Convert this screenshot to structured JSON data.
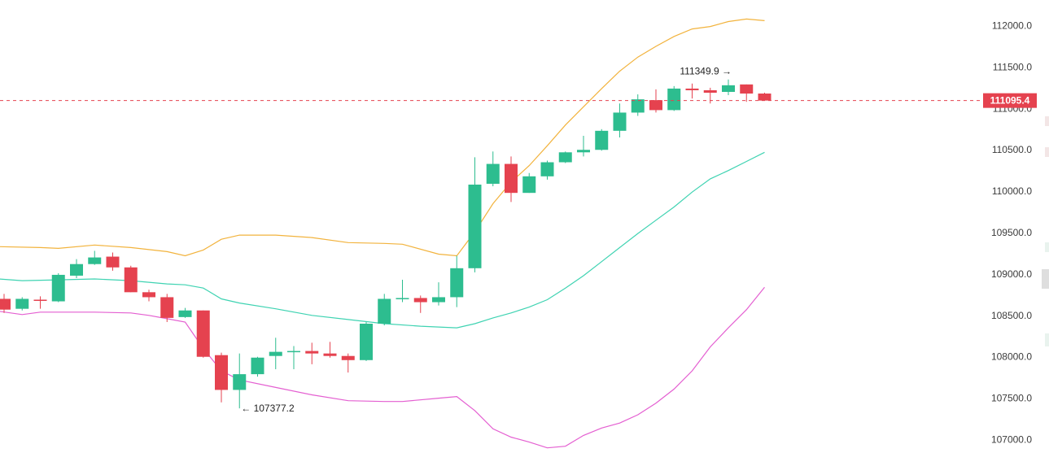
{
  "chart_data": {
    "type": "candlestick",
    "ylim": [
      106730,
      112310
    ],
    "x_count": 42,
    "y_ticks": [
      112000,
      111500,
      111000,
      110500,
      110000,
      109500,
      109000,
      108500,
      108000,
      107500,
      107000
    ],
    "y_tick_labels": [
      "112000.0",
      "111500.0",
      "111000.0",
      "110500.0",
      "110000.0",
      "109500.0",
      "109000.0",
      "108500.0",
      "108000.0",
      "107500.0",
      "107000.0"
    ],
    "current_price": 111095.4,
    "current_price_label": "111095.4",
    "candles": [
      {
        "i": 0,
        "o": 108700,
        "h": 108760,
        "l": 108530,
        "c": 108570
      },
      {
        "i": 1,
        "o": 108580,
        "h": 108720,
        "l": 108560,
        "c": 108700
      },
      {
        "i": 2,
        "o": 108690,
        "h": 108730,
        "l": 108580,
        "c": 108680
      },
      {
        "i": 3,
        "o": 108670,
        "h": 109010,
        "l": 108660,
        "c": 108990
      },
      {
        "i": 4,
        "o": 108980,
        "h": 109180,
        "l": 108950,
        "c": 109120
      },
      {
        "i": 5,
        "o": 109120,
        "h": 109280,
        "l": 109110,
        "c": 109200
      },
      {
        "i": 6,
        "o": 109210,
        "h": 109260,
        "l": 109040,
        "c": 109080
      },
      {
        "i": 7,
        "o": 109080,
        "h": 109100,
        "l": 108780,
        "c": 108780
      },
      {
        "i": 8,
        "o": 108780,
        "h": 108810,
        "l": 108670,
        "c": 108720
      },
      {
        "i": 9,
        "o": 108720,
        "h": 108760,
        "l": 108420,
        "c": 108470
      },
      {
        "i": 10,
        "o": 108480,
        "h": 108590,
        "l": 108470,
        "c": 108560
      },
      {
        "i": 11,
        "o": 108560,
        "h": 108560,
        "l": 107990,
        "c": 108000
      },
      {
        "i": 12,
        "o": 108020,
        "h": 108050,
        "l": 107450,
        "c": 107600
      },
      {
        "i": 13,
        "o": 107600,
        "h": 108040,
        "l": 107377.2,
        "c": 107790
      },
      {
        "i": 14,
        "o": 107790,
        "h": 108000,
        "l": 107760,
        "c": 107990
      },
      {
        "i": 15,
        "o": 108010,
        "h": 108230,
        "l": 107850,
        "c": 108060
      },
      {
        "i": 16,
        "o": 108060,
        "h": 108130,
        "l": 107850,
        "c": 108070
      },
      {
        "i": 17,
        "o": 108070,
        "h": 108170,
        "l": 107910,
        "c": 108040
      },
      {
        "i": 18,
        "o": 108040,
        "h": 108180,
        "l": 107990,
        "c": 108010
      },
      {
        "i": 19,
        "o": 108010,
        "h": 108040,
        "l": 107810,
        "c": 107960
      },
      {
        "i": 20,
        "o": 107960,
        "h": 108420,
        "l": 107950,
        "c": 108400
      },
      {
        "i": 21,
        "o": 108400,
        "h": 108760,
        "l": 108380,
        "c": 108700
      },
      {
        "i": 22,
        "o": 108700,
        "h": 108930,
        "l": 108660,
        "c": 108710
      },
      {
        "i": 23,
        "o": 108710,
        "h": 108740,
        "l": 108530,
        "c": 108660
      },
      {
        "i": 24,
        "o": 108660,
        "h": 108900,
        "l": 108620,
        "c": 108720
      },
      {
        "i": 25,
        "o": 108720,
        "h": 109220,
        "l": 108600,
        "c": 109070
      },
      {
        "i": 26,
        "o": 109070,
        "h": 110410,
        "l": 109020,
        "c": 110080
      },
      {
        "i": 27,
        "o": 110090,
        "h": 110480,
        "l": 110060,
        "c": 110330
      },
      {
        "i": 28,
        "o": 110330,
        "h": 110420,
        "l": 109870,
        "c": 109980
      },
      {
        "i": 29,
        "o": 109980,
        "h": 110220,
        "l": 109980,
        "c": 110180
      },
      {
        "i": 30,
        "o": 110180,
        "h": 110370,
        "l": 110140,
        "c": 110350
      },
      {
        "i": 31,
        "o": 110350,
        "h": 110480,
        "l": 110340,
        "c": 110470
      },
      {
        "i": 32,
        "o": 110470,
        "h": 110670,
        "l": 110420,
        "c": 110500
      },
      {
        "i": 33,
        "o": 110500,
        "h": 110750,
        "l": 110490,
        "c": 110730
      },
      {
        "i": 34,
        "o": 110730,
        "h": 111060,
        "l": 110650,
        "c": 110950
      },
      {
        "i": 35,
        "o": 110950,
        "h": 111170,
        "l": 110910,
        "c": 111110
      },
      {
        "i": 36,
        "o": 111100,
        "h": 111230,
        "l": 110950,
        "c": 110980
      },
      {
        "i": 37,
        "o": 110980,
        "h": 111270,
        "l": 110970,
        "c": 111240
      },
      {
        "i": 38,
        "o": 111240,
        "h": 111300,
        "l": 111120,
        "c": 111220
      },
      {
        "i": 39,
        "o": 111220,
        "h": 111250,
        "l": 111060,
        "c": 111190
      },
      {
        "i": 40,
        "o": 111200,
        "h": 111349.9,
        "l": 111160,
        "c": 111280
      },
      {
        "i": 41,
        "o": 111290,
        "h": 111290,
        "l": 111080,
        "c": 111180
      },
      {
        "i": 42,
        "o": 111180,
        "h": 111190,
        "l": 111095.4,
        "c": 111095.4
      }
    ],
    "bands": {
      "upper_color": "#f2b33d",
      "middle_color": "#3fd3b2",
      "lower_color": "#e45fd1",
      "upper": [
        [
          -0.3,
          109330
        ],
        [
          2,
          109320
        ],
        [
          3,
          109310
        ],
        [
          5,
          109350
        ],
        [
          7,
          109320
        ],
        [
          9,
          109270
        ],
        [
          10,
          109220
        ],
        [
          11,
          109290
        ],
        [
          12,
          109420
        ],
        [
          13,
          109470
        ],
        [
          15,
          109470
        ],
        [
          17,
          109440
        ],
        [
          19,
          109380
        ],
        [
          21,
          109370
        ],
        [
          22,
          109360
        ],
        [
          24,
          109240
        ],
        [
          25,
          109220
        ],
        [
          26,
          109510
        ],
        [
          27,
          109850
        ],
        [
          28,
          110110
        ],
        [
          29,
          110310
        ],
        [
          30,
          110550
        ],
        [
          31,
          110800
        ],
        [
          32,
          111020
        ],
        [
          33,
          111240
        ],
        [
          34,
          111450
        ],
        [
          35,
          111620
        ],
        [
          36,
          111750
        ],
        [
          37,
          111870
        ],
        [
          38,
          111960
        ],
        [
          39,
          111990
        ],
        [
          40,
          112050
        ],
        [
          41,
          112080
        ],
        [
          42,
          112060
        ]
      ],
      "middle": [
        [
          -0.3,
          108940
        ],
        [
          1,
          108920
        ],
        [
          3,
          108930
        ],
        [
          5,
          108940
        ],
        [
          7,
          108920
        ],
        [
          9,
          108880
        ],
        [
          10,
          108870
        ],
        [
          11,
          108830
        ],
        [
          12,
          108700
        ],
        [
          13,
          108650
        ],
        [
          15,
          108580
        ],
        [
          17,
          108500
        ],
        [
          19,
          108450
        ],
        [
          21,
          108400
        ],
        [
          23,
          108370
        ],
        [
          25,
          108350
        ],
        [
          26,
          108400
        ],
        [
          27,
          108470
        ],
        [
          28,
          108530
        ],
        [
          29,
          108600
        ],
        [
          30,
          108690
        ],
        [
          31,
          108830
        ],
        [
          32,
          108980
        ],
        [
          33,
          109150
        ],
        [
          34,
          109320
        ],
        [
          35,
          109490
        ],
        [
          36,
          109650
        ],
        [
          37,
          109810
        ],
        [
          38,
          109990
        ],
        [
          39,
          110150
        ],
        [
          40,
          110250
        ],
        [
          41,
          110360
        ],
        [
          42,
          110470
        ]
      ],
      "lower": [
        [
          -0.3,
          108550
        ],
        [
          1,
          108510
        ],
        [
          2,
          108540
        ],
        [
          5,
          108540
        ],
        [
          7,
          108530
        ],
        [
          8,
          108500
        ],
        [
          9,
          108460
        ],
        [
          10,
          108420
        ],
        [
          11,
          108100
        ],
        [
          12,
          107830
        ],
        [
          13,
          107720
        ],
        [
          15,
          107630
        ],
        [
          17,
          107540
        ],
        [
          19,
          107470
        ],
        [
          21,
          107460
        ],
        [
          22,
          107460
        ],
        [
          24,
          107500
        ],
        [
          25,
          107520
        ],
        [
          26,
          107350
        ],
        [
          27,
          107130
        ],
        [
          28,
          107030
        ],
        [
          29,
          106970
        ],
        [
          30,
          106900
        ],
        [
          31,
          106920
        ],
        [
          32,
          107050
        ],
        [
          33,
          107140
        ],
        [
          34,
          107200
        ],
        [
          35,
          107300
        ],
        [
          36,
          107440
        ],
        [
          37,
          107610
        ],
        [
          38,
          107830
        ],
        [
          39,
          108120
        ],
        [
          40,
          108350
        ],
        [
          41,
          108570
        ],
        [
          42,
          108840
        ]
      ]
    },
    "annotations": [
      {
        "text": "← 107377.2",
        "i": 13,
        "value": 107377.2,
        "side": "right-below"
      },
      {
        "text": "111349.9 →",
        "i": 40,
        "value": 111349.9,
        "side": "left-above"
      }
    ],
    "colors": {
      "up": "#2dbd8f",
      "down": "#e5424f",
      "price_line": "#e5424f",
      "price_tag_bg": "#e5424f",
      "axis_text": "#3b3b3b",
      "background": "#ffffff"
    },
    "grid": false,
    "legend": "none"
  }
}
